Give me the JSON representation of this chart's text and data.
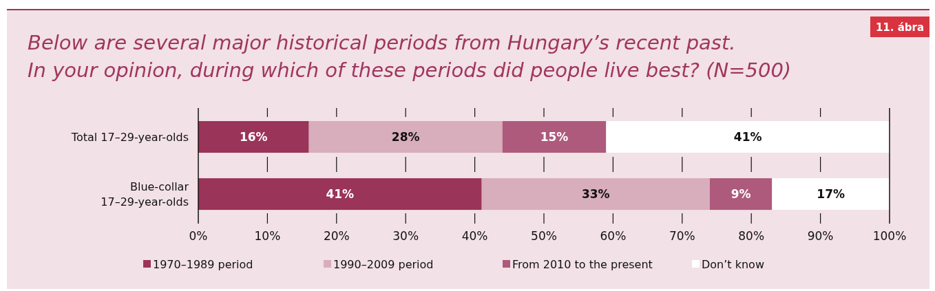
{
  "chart_data": {
    "type": "bar",
    "orientation": "horizontal",
    "stacked": true,
    "title": "Below are several major historical periods from Hungary’s recent past.\nIn your opinion, during which of these periods did people live best? (N=500)",
    "annotations": [
      "11. ábra"
    ],
    "categories": [
      "Total 17–29-year-olds",
      "Blue-collar\n17–29-year-olds"
    ],
    "series": [
      {
        "name": "1970–1989 period",
        "color": "#9a3459",
        "values": [
          16,
          41
        ],
        "value_labels": [
          "16%",
          "41%"
        ]
      },
      {
        "name": "1990–2009 period",
        "color": "#d8adbc",
        "values": [
          28,
          33
        ],
        "value_labels": [
          "28%",
          "33%"
        ]
      },
      {
        "name": "From 2010 to the present",
        "color": "#ad5a7c",
        "values": [
          15,
          9
        ],
        "value_labels": [
          "15%",
          "9%"
        ]
      },
      {
        "name": "Don’t know",
        "color": "#ffffff",
        "values": [
          41,
          17
        ],
        "value_labels": [
          "41%",
          "17%"
        ]
      }
    ],
    "xlim": [
      0,
      100
    ],
    "xticks": [
      {
        "value": 0,
        "label": "0%"
      },
      {
        "value": 10,
        "label": "10%"
      },
      {
        "value": 20,
        "label": "20%"
      },
      {
        "value": 30,
        "label": "30%"
      },
      {
        "value": 40,
        "label": "40%"
      },
      {
        "value": 50,
        "label": "50%"
      },
      {
        "value": 60,
        "label": "60%"
      },
      {
        "value": 70,
        "label": "70%"
      },
      {
        "value": 80,
        "label": "80%"
      },
      {
        "value": 90,
        "label": "90%"
      },
      {
        "value": 100,
        "label": "100%"
      }
    ],
    "legend": "bottom",
    "grid": false
  }
}
